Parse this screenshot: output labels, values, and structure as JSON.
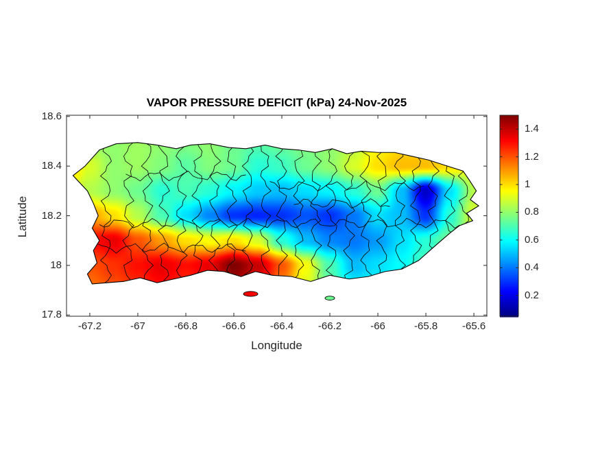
{
  "figure": {
    "background": "#ffffff",
    "text_color": "#262626",
    "axis_color": "#262626",
    "coast_color": "#000000",
    "border_color": "#0a0a0a"
  },
  "chart_data": {
    "type": "heatmap",
    "title": "VAPOR PRESSURE DEFICIT (kPa) 24-Nov-2025",
    "xlabel": "Longitude",
    "ylabel": "Latitude",
    "xlim": [
      -67.297,
      -65.546
    ],
    "ylim": [
      17.795,
      18.605
    ],
    "xticks": [
      -67.2,
      -67.0,
      -66.8,
      -66.6,
      -66.4,
      -66.2,
      -66.0,
      -65.8,
      -65.6
    ],
    "xtick_labels": [
      "-67.2",
      "-67",
      "-66.8",
      "-66.6",
      "-66.4",
      "-66.2",
      "-66",
      "-65.8",
      "-65.6"
    ],
    "yticks": [
      17.8,
      18.0,
      18.2,
      18.4,
      18.6
    ],
    "ytick_labels": [
      "17.8",
      "18",
      "18.2",
      "18.4",
      "18.6"
    ],
    "clim": [
      0.05,
      1.5
    ],
    "colorbar": {
      "ticks": [
        0.2,
        0.4,
        0.6,
        0.8,
        1.0,
        1.2,
        1.4
      ],
      "tick_labels": [
        "0.2",
        "0.4",
        "0.6",
        "0.8",
        "1",
        "1.2",
        "1.4"
      ]
    },
    "colormap": {
      "name": "jet",
      "stops": [
        {
          "t": 0.0,
          "color": "#000080"
        },
        {
          "t": 0.125,
          "color": "#0000FF"
        },
        {
          "t": 0.375,
          "color": "#00FFFF"
        },
        {
          "t": 0.625,
          "color": "#FFFF00"
        },
        {
          "t": 0.875,
          "color": "#FF0000"
        },
        {
          "t": 1.0,
          "color": "#800000"
        }
      ]
    },
    "grid": {
      "lon": [
        -67.3,
        -67.2,
        -67.1,
        -67.0,
        -66.9,
        -66.8,
        -66.7,
        -66.6,
        -66.5,
        -66.4,
        -66.3,
        -66.2,
        -66.1,
        -66.0,
        -65.9,
        -65.8,
        -65.7,
        -65.6,
        -65.5
      ],
      "lat": [
        18.6,
        18.5,
        18.4,
        18.3,
        18.2,
        18.1,
        18.0,
        17.9
      ],
      "values_kpa": [
        [
          0.8,
          0.8,
          0.8,
          0.8,
          0.8,
          0.8,
          0.8,
          0.78,
          0.75,
          0.78,
          0.8,
          0.82,
          0.85,
          0.9,
          0.95,
          0.95,
          0.9,
          0.88,
          0.85
        ],
        [
          0.85,
          0.8,
          0.8,
          0.82,
          0.8,
          0.78,
          0.8,
          0.75,
          0.72,
          0.75,
          0.78,
          0.8,
          0.85,
          0.95,
          1.0,
          1.0,
          0.95,
          0.9,
          0.85
        ],
        [
          1.05,
          0.9,
          0.8,
          0.82,
          0.78,
          0.72,
          0.78,
          0.75,
          0.65,
          0.68,
          0.75,
          0.8,
          0.9,
          1.0,
          1.05,
          1.05,
          1.0,
          0.95,
          0.9
        ],
        [
          0.95,
          0.85,
          0.8,
          0.75,
          0.65,
          0.7,
          0.65,
          0.58,
          0.52,
          0.5,
          0.55,
          0.58,
          0.65,
          0.75,
          0.5,
          0.15,
          0.55,
          0.85,
          0.9
        ],
        [
          1.1,
          1.1,
          1.0,
          0.85,
          0.7,
          0.55,
          0.42,
          0.3,
          0.28,
          0.3,
          0.35,
          0.3,
          0.4,
          0.55,
          0.5,
          0.3,
          0.65,
          0.9,
          0.95
        ],
        [
          1.2,
          1.3,
          1.35,
          1.2,
          1.1,
          1.0,
          0.95,
          1.0,
          0.9,
          0.65,
          0.5,
          0.42,
          0.4,
          0.45,
          0.55,
          0.65,
          0.75,
          0.85,
          0.9
        ],
        [
          1.1,
          1.2,
          1.25,
          1.3,
          1.35,
          1.3,
          1.35,
          1.5,
          1.4,
          1.2,
          0.95,
          0.7,
          0.5,
          0.55,
          0.6,
          0.7,
          0.85,
          0.9,
          0.9
        ],
        [
          1.05,
          1.15,
          1.2,
          1.25,
          1.3,
          1.25,
          1.3,
          1.4,
          1.3,
          1.1,
          0.9,
          0.75,
          0.6,
          0.6,
          0.65,
          0.75,
          0.85,
          0.9,
          0.9
        ]
      ]
    },
    "outline": [
      [
        -67.27,
        18.362
      ],
      [
        -67.22,
        18.4
      ],
      [
        -67.16,
        18.465
      ],
      [
        -67.09,
        18.49
      ],
      [
        -67.0,
        18.495
      ],
      [
        -66.92,
        18.485
      ],
      [
        -66.84,
        18.47
      ],
      [
        -66.78,
        18.485
      ],
      [
        -66.7,
        18.49
      ],
      [
        -66.62,
        18.475
      ],
      [
        -66.55,
        18.47
      ],
      [
        -66.47,
        18.485
      ],
      [
        -66.4,
        18.47
      ],
      [
        -66.33,
        18.465
      ],
      [
        -66.26,
        18.455
      ],
      [
        -66.19,
        18.47
      ],
      [
        -66.13,
        18.45
      ],
      [
        -66.07,
        18.46
      ],
      [
        -66.0,
        18.455
      ],
      [
        -65.93,
        18.455
      ],
      [
        -65.86,
        18.44
      ],
      [
        -65.79,
        18.425
      ],
      [
        -65.71,
        18.4
      ],
      [
        -65.645,
        18.38
      ],
      [
        -65.62,
        18.345
      ],
      [
        -65.59,
        18.3
      ],
      [
        -65.615,
        18.265
      ],
      [
        -65.58,
        18.24
      ],
      [
        -65.63,
        18.21
      ],
      [
        -65.605,
        18.18
      ],
      [
        -65.66,
        18.16
      ],
      [
        -65.7,
        18.13
      ],
      [
        -65.76,
        18.08
      ],
      [
        -65.83,
        18.02
      ],
      [
        -65.9,
        17.985
      ],
      [
        -65.97,
        17.975
      ],
      [
        -66.04,
        17.955
      ],
      [
        -66.12,
        17.945
      ],
      [
        -66.2,
        17.96
      ],
      [
        -66.28,
        17.935
      ],
      [
        -66.36,
        17.955
      ],
      [
        -66.44,
        17.96
      ],
      [
        -66.51,
        17.975
      ],
      [
        -66.57,
        17.955
      ],
      [
        -66.64,
        17.975
      ],
      [
        -66.71,
        17.98
      ],
      [
        -66.78,
        17.96
      ],
      [
        -66.85,
        17.945
      ],
      [
        -66.92,
        17.93
      ],
      [
        -66.99,
        17.95
      ],
      [
        -67.06,
        17.935
      ],
      [
        -67.13,
        17.93
      ],
      [
        -67.19,
        17.925
      ],
      [
        -67.21,
        17.965
      ],
      [
        -67.17,
        18.01
      ],
      [
        -67.185,
        18.06
      ],
      [
        -67.16,
        18.1
      ],
      [
        -67.19,
        18.15
      ],
      [
        -67.165,
        18.2
      ],
      [
        -67.185,
        18.25
      ],
      [
        -67.21,
        18.3
      ],
      [
        -67.27,
        18.362
      ]
    ],
    "municipal_borders": {
      "vertical_lons": [
        -67.13,
        -67.04,
        -66.96,
        -66.89,
        -66.82,
        -66.75,
        -66.68,
        -66.61,
        -66.54,
        -66.47,
        -66.4,
        -66.33,
        -66.26,
        -66.19,
        -66.12,
        -66.05,
        -65.98,
        -65.91,
        -65.84,
        -65.77,
        -65.7,
        -65.64
      ],
      "horizontal_lines": [
        {
          "lat": 18.17,
          "lon0": -67.16,
          "lon1": -65.66
        },
        {
          "lat": 18.32,
          "lon0": -66.45,
          "lon1": -65.8
        },
        {
          "lat": 18.07,
          "lon0": -67.17,
          "lon1": -66.55
        },
        {
          "lat": 18.36,
          "lon0": -67.05,
          "lon1": -66.55
        },
        {
          "lat": 18.25,
          "lon0": -66.35,
          "lon1": -65.95
        }
      ]
    },
    "islets": [
      {
        "lon": -66.53,
        "lat": 17.885,
        "rlon": 0.03,
        "rlat": 0.01
      },
      {
        "lon": -66.2,
        "lat": 17.868,
        "rlon": 0.02,
        "rlat": 0.008
      }
    ]
  }
}
